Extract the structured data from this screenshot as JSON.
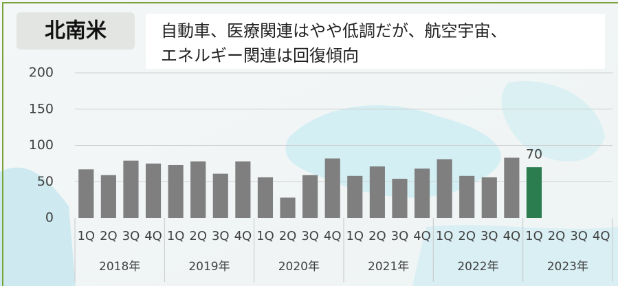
{
  "chart_data": {
    "type": "bar",
    "region": "北南米",
    "caption": [
      "自動車、医療関連はやや低調だが、航空宇宙、",
      "エネルギー関連は回復傾向"
    ],
    "categories": [
      "1Q",
      "2Q",
      "3Q",
      "4Q",
      "1Q",
      "2Q",
      "3Q",
      "4Q",
      "1Q",
      "2Q",
      "3Q",
      "4Q",
      "1Q",
      "2Q",
      "3Q",
      "4Q",
      "1Q",
      "2Q",
      "3Q",
      "4Q",
      "1Q",
      "2Q",
      "3Q",
      "4Q"
    ],
    "groups": [
      "2018年",
      "2019年",
      "2020年",
      "2021年",
      "2022年",
      "2023年"
    ],
    "values": [
      67,
      59,
      79,
      75,
      73,
      78,
      61,
      78,
      56,
      28,
      59,
      82,
      58,
      71,
      54,
      68,
      81,
      58,
      56,
      83,
      70,
      null,
      null,
      null
    ],
    "color": "#7f7f7f",
    "highlight_color": "#2b7d4f",
    "label_last": true,
    "ylim": [
      0,
      200
    ],
    "yticks": [
      0,
      50,
      100,
      150,
      200
    ],
    "grid": true
  }
}
